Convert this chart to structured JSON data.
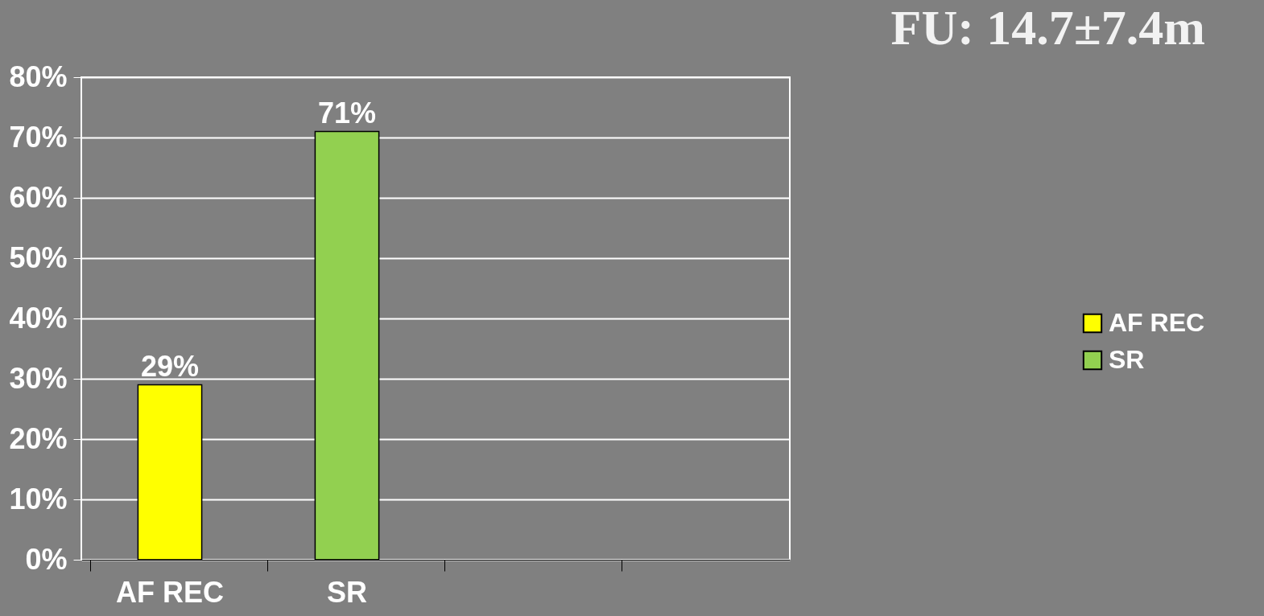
{
  "chart_data": {
    "type": "bar",
    "title": "FU: 14.7±7.4m",
    "categories": [
      "AF REC",
      "SR",
      null,
      null
    ],
    "series": [
      {
        "name": "AF REC",
        "color": "#ffff00",
        "values": [
          29,
          null,
          null,
          null
        ],
        "value_labels": [
          "29%",
          null,
          null,
          null
        ]
      },
      {
        "name": "SR",
        "color": "#92d050",
        "values": [
          null,
          71,
          null,
          null
        ],
        "value_labels": [
          null,
          "71%",
          null,
          null
        ]
      }
    ],
    "ylim": [
      0,
      80
    ],
    "yticks": [
      {
        "value": 0,
        "label": "0%"
      },
      {
        "value": 10,
        "label": "10%"
      },
      {
        "value": 20,
        "label": "20%"
      },
      {
        "value": 30,
        "label": "30%"
      },
      {
        "value": 40,
        "label": "40%"
      },
      {
        "value": 50,
        "label": "50%"
      },
      {
        "value": 60,
        "label": "60%"
      },
      {
        "value": 70,
        "label": "70%"
      },
      {
        "value": 80,
        "label": "80%"
      }
    ],
    "grid": "y",
    "legend": "right"
  }
}
